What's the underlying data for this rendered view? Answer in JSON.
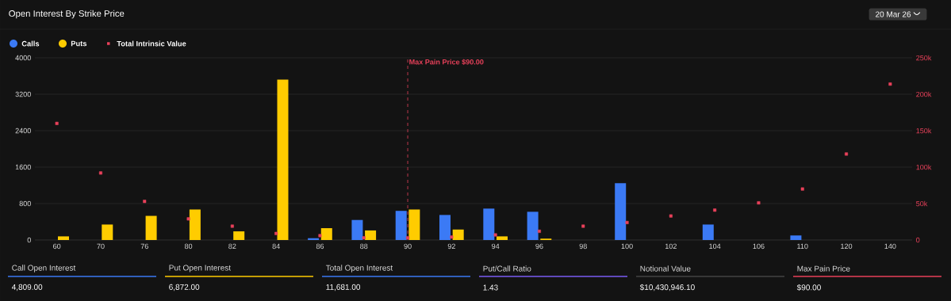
{
  "chart_data": {
    "type": "bar",
    "title": "Open Interest By Strike Price",
    "categories": [
      "60",
      "70",
      "76",
      "80",
      "82",
      "84",
      "86",
      "88",
      "90",
      "92",
      "94",
      "96",
      "98",
      "100",
      "102",
      "104",
      "106",
      "110",
      "120",
      "140"
    ],
    "series": [
      {
        "name": "Calls",
        "color": "#3b7af5",
        "values": [
          null,
          null,
          null,
          null,
          null,
          null,
          40,
          440,
          640,
          550,
          690,
          620,
          null,
          1250,
          null,
          340,
          null,
          100,
          null,
          null
        ]
      },
      {
        "name": "Puts",
        "color": "#ffcc00",
        "values": [
          80,
          340,
          530,
          670,
          190,
          3520,
          260,
          210,
          670,
          230,
          80,
          30,
          null,
          null,
          null,
          null,
          null,
          null,
          null,
          null
        ]
      },
      {
        "name": "Total Intrinsic Value",
        "type": "scatter",
        "axis": "y2",
        "color": "#e8415a",
        "values": [
          160000,
          92000,
          53000,
          29000,
          19000,
          9000,
          6000,
          3000,
          3000,
          4000,
          7000,
          12000,
          19000,
          24000,
          33000,
          41000,
          51000,
          70000,
          118000,
          214000
        ]
      }
    ],
    "ylim": [
      0,
      4000
    ],
    "yticks": [
      0,
      800,
      1600,
      2400,
      3200,
      4000
    ],
    "y2lim": [
      0,
      250000
    ],
    "y2ticks": [
      {
        "value": 0,
        "label": "0"
      },
      {
        "value": 50000,
        "label": "50k"
      },
      {
        "value": 100000,
        "label": "100k"
      },
      {
        "value": 150000,
        "label": "150k"
      },
      {
        "value": 200000,
        "label": "200k"
      },
      {
        "value": 250000,
        "label": "250k"
      }
    ],
    "ref_lines": [
      {
        "axis": "x",
        "value": "90",
        "label": "Max Pain Price $90.00",
        "color": "#e8415a",
        "line_style": "dashed"
      }
    ],
    "grid": "y",
    "legend": "top left",
    "marker": "square",
    "annotations": [
      "20 Mar 26",
      "Call Open Interest",
      "4,809.00",
      "Put Open Interest",
      "6,872.00",
      "Total Open Interest",
      "11,681.00",
      "Put/Call Ratio",
      "1.43",
      "Notional Value",
      "$10,430,946.10",
      "Max Pain Price",
      "$90.00"
    ]
  }
}
